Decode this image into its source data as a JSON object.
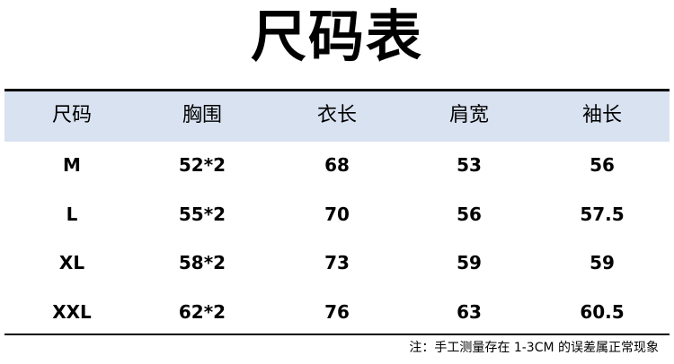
{
  "title": "尺码表",
  "table": {
    "headers": [
      "尺码",
      "胸围",
      "衣长",
      "肩宽",
      "袖长"
    ],
    "rows": [
      [
        "M",
        "52*2",
        "68",
        "53",
        "56"
      ],
      [
        "L",
        "55*2",
        "70",
        "56",
        "57.5"
      ],
      [
        "XL",
        "58*2",
        "73",
        "59",
        "59"
      ],
      [
        "XXL",
        "62*2",
        "76",
        "63",
        "60.5"
      ]
    ]
  },
  "note": "注：手工测量存在 1-3CM 的误差属正常现象",
  "colors": {
    "header_bg": "#d9e2f1",
    "rule": "#000000"
  }
}
